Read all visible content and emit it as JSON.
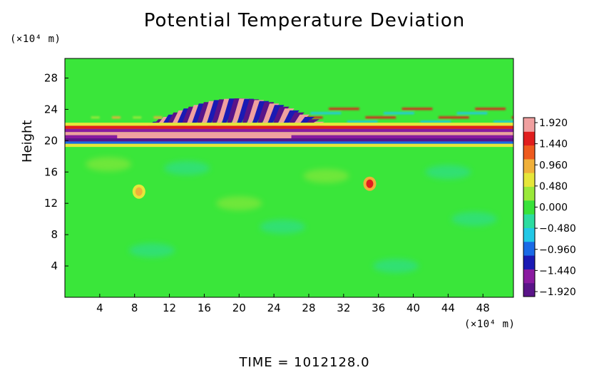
{
  "chart_data": {
    "type": "heatmap",
    "title": "Potential Temperature Deviation",
    "ylabel": "Height",
    "x_unit": "(×10⁴ m)",
    "y_unit": "(×10⁴ m)",
    "x_ticks": [
      4,
      8,
      12,
      16,
      20,
      24,
      28,
      32,
      36,
      40,
      44,
      48
    ],
    "y_ticks": [
      4,
      8,
      12,
      16,
      20,
      24,
      28
    ],
    "xlim": [
      0,
      51.5
    ],
    "ylim": [
      0,
      30.5
    ],
    "colorbar_ticks": [
      "1.920",
      "1.440",
      "0.960",
      "0.480",
      "0.000",
      "−0.480",
      "−0.960",
      "−1.440",
      "−1.920"
    ],
    "colorbar_range": [
      -1.92,
      1.92
    ],
    "colormap": [
      "#5a1488",
      "#8a1aa0",
      "#1a1ab4",
      "#1a6ae6",
      "#22c8e6",
      "#2cdca0",
      "#38e23a",
      "#9ae83a",
      "#e6e63a",
      "#f0b03a",
      "#ee5a1e",
      "#e01e1e",
      "#f0a0a0"
    ],
    "features": [
      {
        "name": "strong horizontal inversion band",
        "y_center": 20.6,
        "y_extent": [
          19.8,
          21.6
        ],
        "values": "alternating -1.92 / 1.92"
      },
      {
        "name": "gravity wave field",
        "x_extent": [
          3,
          28
        ],
        "y_extent": [
          21.5,
          25.5
        ],
        "values": "alternating -1.9 / 1.9"
      },
      {
        "name": "upper weak waves",
        "y_extent": [
          22,
          28
        ],
        "values": "±0.5"
      },
      {
        "name": "warm anomaly",
        "x": 35,
        "y": 14.5,
        "value": 1.4
      },
      {
        "name": "weak anomaly",
        "x": 8.5,
        "y": 13.5,
        "value": 0.8
      }
    ],
    "time_label": "TIME  =  1012128.0"
  }
}
